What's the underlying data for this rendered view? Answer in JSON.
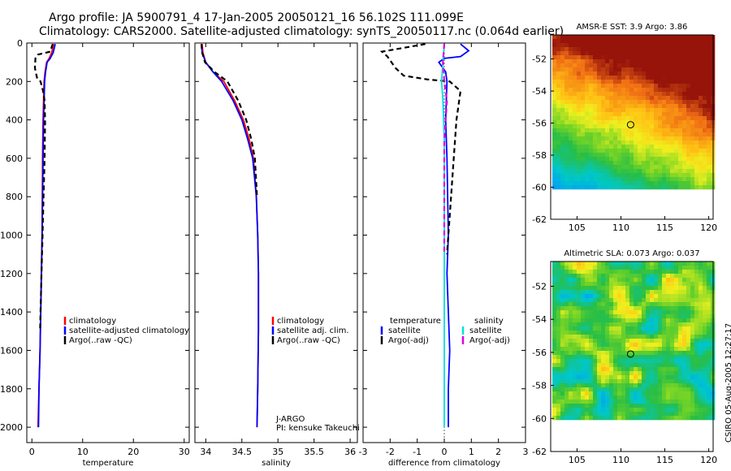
{
  "header": {
    "title_line1": "Argo profile: JA 5900791_4 17-Jan-2005 20050121_16 56.102S 111.099E",
    "title_line2": "Climatology: CARS2000. Satellite-adjusted climatology: synTS_20050117.nc (0.064d earlier)"
  },
  "footer": {
    "stamp": "CSIRO 05-Aug-2005 12:27:17"
  },
  "colors": {
    "climatology": "#ff0000",
    "satellite": "#0000ff",
    "argo": "#000000",
    "salinity_satellite": "#00e0e0",
    "salinity_argo": "#e000e0"
  },
  "chart_data": [
    {
      "type": "line",
      "id": "temperature",
      "xlabel": "temperature",
      "ylabel": "",
      "xlim": [
        -1,
        31
      ],
      "ylim": [
        2080,
        0
      ],
      "xticks": [
        0,
        10,
        20,
        30
      ],
      "yticks": [
        0,
        200,
        400,
        600,
        800,
        1000,
        1200,
        1400,
        1600,
        1800,
        2000
      ],
      "legend_position": "lower-right",
      "series": [
        {
          "name": "climatology",
          "color": "#ff0000",
          "style": "solid",
          "x": [
            4.3,
            3.9,
            3.4,
            2.9,
            2.6,
            2.4,
            2.3,
            2.2,
            2.1,
            2.0,
            1.85,
            1.6,
            1.4,
            1.2
          ],
          "y": [
            5,
            50,
            80,
            100,
            150,
            200,
            300,
            400,
            600,
            1000,
            1200,
            1600,
            1800,
            2000
          ]
        },
        {
          "name": "satellite-adjusted climatology",
          "color": "#0000ff",
          "style": "solid",
          "x": [
            4.6,
            4.2,
            3.6,
            3.0,
            2.7,
            2.5,
            2.4,
            2.3,
            2.2,
            2.0,
            1.9,
            1.6,
            1.4,
            1.3
          ],
          "y": [
            5,
            50,
            80,
            100,
            150,
            200,
            300,
            400,
            600,
            1000,
            1200,
            1600,
            1800,
            2000
          ]
        },
        {
          "name": "Argo(..raw -QC)",
          "color": "#000000",
          "style": "dashed",
          "x": [
            4.1,
            3.6,
            1.2,
            0.7,
            0.6,
            1.0,
            1.3,
            1.7,
            2.2,
            2.5,
            2.6,
            2.5,
            2.3,
            2.1,
            1.9,
            1.6
          ],
          "y": [
            5,
            45,
            60,
            80,
            130,
            180,
            190,
            200,
            250,
            300,
            400,
            600,
            800,
            1000,
            1200,
            1500
          ]
        }
      ],
      "legend": [
        "climatology",
        "satellite-adjusted climatology",
        "Argo(..raw -QC)"
      ]
    },
    {
      "type": "line",
      "id": "salinity",
      "xlabel": "salinity",
      "ylabel": "",
      "xlim": [
        33.85,
        36.1
      ],
      "ylim": [
        2080,
        0
      ],
      "xticks": [
        34,
        34.5,
        35,
        35.5,
        36
      ],
      "legend_position": "lower-right",
      "annotation": [
        "J-ARGO",
        "PI: kensuke Takeuchi"
      ],
      "series": [
        {
          "name": "climatology",
          "color": "#ff0000",
          "style": "solid",
          "x": [
            33.95,
            33.96,
            34.0,
            34.1,
            34.25,
            34.4,
            34.52,
            34.6,
            34.66,
            34.7,
            34.72,
            34.73,
            34.73,
            34.72,
            34.71
          ],
          "y": [
            5,
            50,
            100,
            150,
            200,
            300,
            400,
            500,
            600,
            800,
            1000,
            1200,
            1500,
            1800,
            2000
          ]
        },
        {
          "name": "satellite adj. clim.",
          "color": "#0000ff",
          "style": "solid",
          "x": [
            33.94,
            33.95,
            34.0,
            34.1,
            34.22,
            34.38,
            34.5,
            34.58,
            34.65,
            34.7,
            34.72,
            34.73,
            34.73,
            34.72,
            34.71
          ],
          "y": [
            5,
            50,
            100,
            150,
            200,
            300,
            400,
            500,
            600,
            800,
            1000,
            1200,
            1500,
            1800,
            2000
          ]
        },
        {
          "name": "Argo(..raw -QC)",
          "color": "#000000",
          "style": "dashed",
          "x": [
            33.94,
            33.95,
            33.99,
            34.12,
            34.3,
            34.45,
            34.56,
            34.63,
            34.68,
            34.71
          ],
          "y": [
            5,
            50,
            100,
            150,
            200,
            300,
            400,
            500,
            600,
            800
          ]
        }
      ],
      "legend": [
        "climatology",
        "satellite adj. clim.",
        "Argo(..raw -QC)"
      ]
    },
    {
      "type": "line",
      "id": "difference",
      "xlabel": "difference from climatology",
      "ylabel": "",
      "xlim": [
        -3,
        3
      ],
      "ylim": [
        2080,
        0
      ],
      "xticks": [
        -3,
        -2,
        -1,
        0,
        1,
        2,
        3
      ],
      "legend_position": "lower-right",
      "series": [
        {
          "name": "satellite",
          "group": "temperature",
          "color": "#0000ff",
          "style": "solid",
          "x": [
            0.6,
            0.9,
            0.6,
            0.0,
            -0.2,
            0.05,
            0.1,
            0.05,
            0.1,
            0.15,
            0.1,
            0.2,
            0.15,
            0.15
          ],
          "y": [
            5,
            40,
            70,
            80,
            100,
            150,
            200,
            400,
            600,
            1000,
            1200,
            1600,
            1800,
            2000
          ]
        },
        {
          "name": "Argo(-adj)",
          "group": "temperature",
          "color": "#000000",
          "style": "dashed",
          "x": [
            -0.7,
            -2.3,
            -2.1,
            -1.8,
            -1.5,
            -0.6,
            0.2,
            0.6,
            0.55,
            0.45,
            0.4,
            0.3,
            0.2,
            0.1
          ],
          "y": [
            5,
            45,
            70,
            130,
            170,
            190,
            200,
            250,
            300,
            400,
            500,
            700,
            900,
            1100
          ]
        },
        {
          "name": "satellite",
          "group": "salinity",
          "color": "#00e0e0",
          "style": "solid",
          "x": [
            0.0,
            -0.05,
            -0.1,
            -0.05,
            0.0,
            0.0,
            0.0,
            0.0
          ],
          "y": [
            5,
            100,
            200,
            300,
            500,
            800,
            1200,
            2000
          ]
        },
        {
          "name": "Argo(-adj)",
          "group": "salinity",
          "color": "#e000e0",
          "style": "dashed",
          "x": [
            0.0,
            -0.05,
            0.0,
            0.1,
            0.0,
            0.0,
            0.0
          ],
          "y": [
            5,
            100,
            200,
            300,
            500,
            800,
            1100
          ]
        }
      ],
      "legend_groups": [
        {
          "title": "temperature",
          "entries": [
            "satellite",
            "Argo(-adj)"
          ]
        },
        {
          "title": "salinity",
          "entries": [
            "satellite",
            "Argo(-adj)"
          ]
        }
      ]
    },
    {
      "type": "heatmap",
      "id": "sst_map",
      "title": "AMSR-E SST: 3.9 Argo: 3.86",
      "xlim": [
        102,
        120.5
      ],
      "ylim": [
        -62,
        -50.5
      ],
      "xticks": [
        105,
        110,
        115,
        120
      ],
      "yticks": [
        -52,
        -54,
        -56,
        -58,
        -60,
        -62
      ],
      "data_ylim": [
        -60,
        -50.5
      ],
      "marker": {
        "x": 111.099,
        "y": -56.102
      }
    },
    {
      "type": "heatmap",
      "id": "sla_map",
      "title": "Altimetric SLA: 0.073 Argo: 0.037",
      "xlim": [
        102,
        120.5
      ],
      "ylim": [
        -62,
        -50.5
      ],
      "xticks": [
        105,
        110,
        115,
        120
      ],
      "yticks": [
        -52,
        -54,
        -56,
        -58,
        -60,
        -62
      ],
      "data_ylim": [
        -60,
        -50.5
      ],
      "marker": {
        "x": 111.099,
        "y": -56.102
      }
    }
  ]
}
